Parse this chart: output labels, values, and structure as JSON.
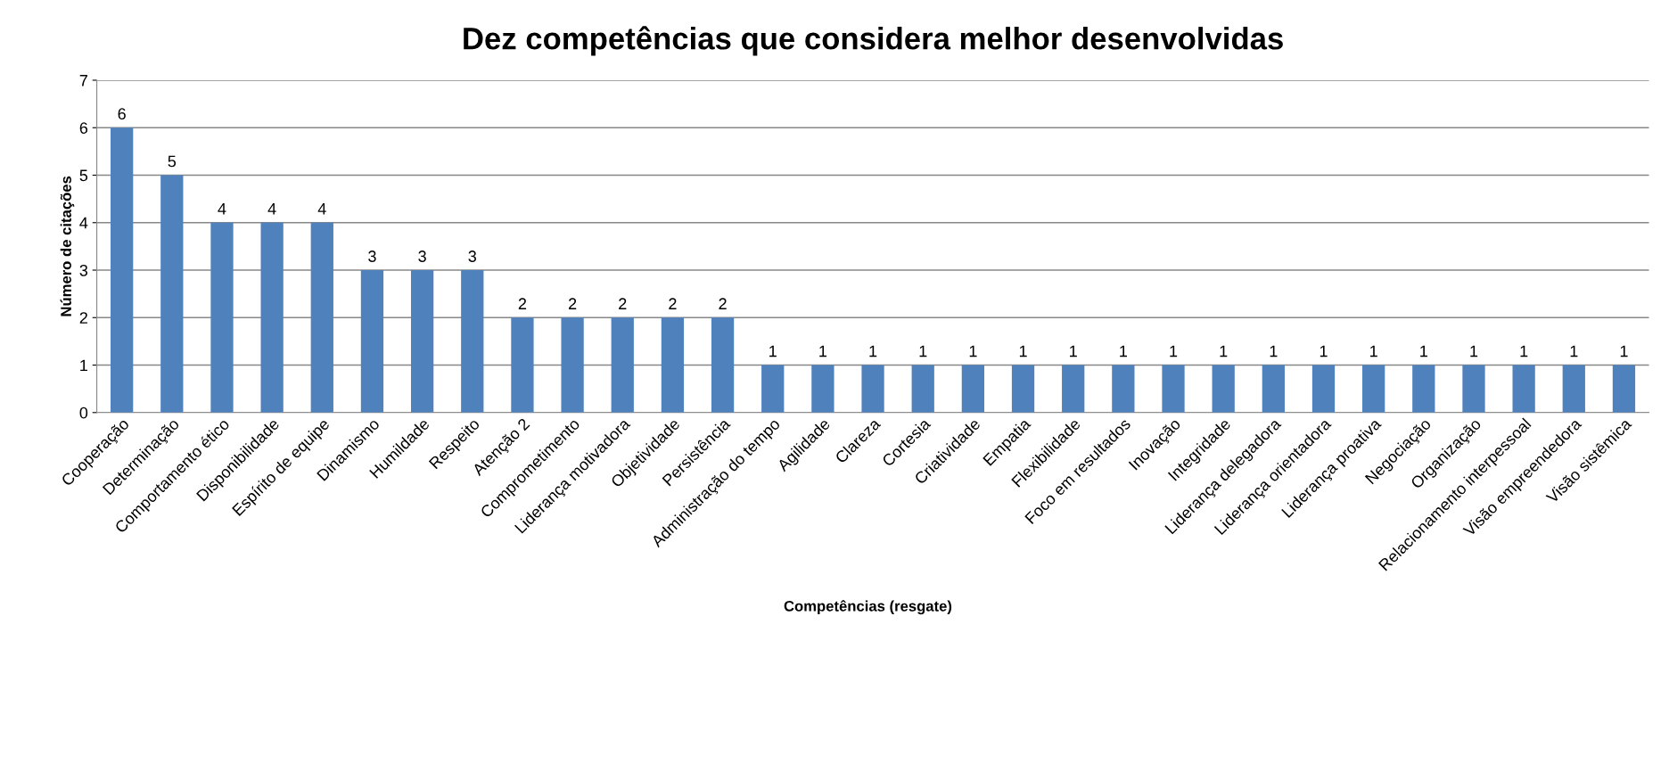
{
  "chart_data": {
    "type": "bar",
    "title": "Dez competências que considera melhor desenvolvidas",
    "xlabel": "Competências (resgate)",
    "ylabel": "Número de citações",
    "categories": [
      "Cooperação",
      "Determinação",
      "Comportamento ético",
      "Disponibilidade",
      "Espírito de equipe",
      "Dinamismo",
      "Humildade",
      "Respeito",
      "Atenção 2",
      "Comprometimento",
      "Liderança motivadora",
      "Objetividade",
      "Persistência",
      "Administração do tempo",
      "Agilidade",
      "Clareza",
      "Cortesia",
      "Criatividade",
      "Empatia",
      "Flexibilidade",
      "Foco em resultados",
      "Inovação",
      "Integridade",
      "Liderança delegadora",
      "Liderança orientadora",
      "Liderança proativa",
      "Negociação",
      "Organização",
      "Relacionamento interpessoal",
      "Visão empreendedora",
      "Visão sistêmica"
    ],
    "values": [
      6,
      5,
      4,
      4,
      4,
      3,
      3,
      3,
      2,
      2,
      2,
      2,
      2,
      1,
      1,
      1,
      1,
      1,
      1,
      1,
      1,
      1,
      1,
      1,
      1,
      1,
      1,
      1,
      1,
      1,
      1
    ],
    "color": "#4f81bd",
    "ylim": [
      0,
      7
    ],
    "yticks": [
      0,
      1,
      2,
      3,
      4,
      5,
      6,
      7
    ],
    "grid": "y",
    "data_labels": true
  }
}
